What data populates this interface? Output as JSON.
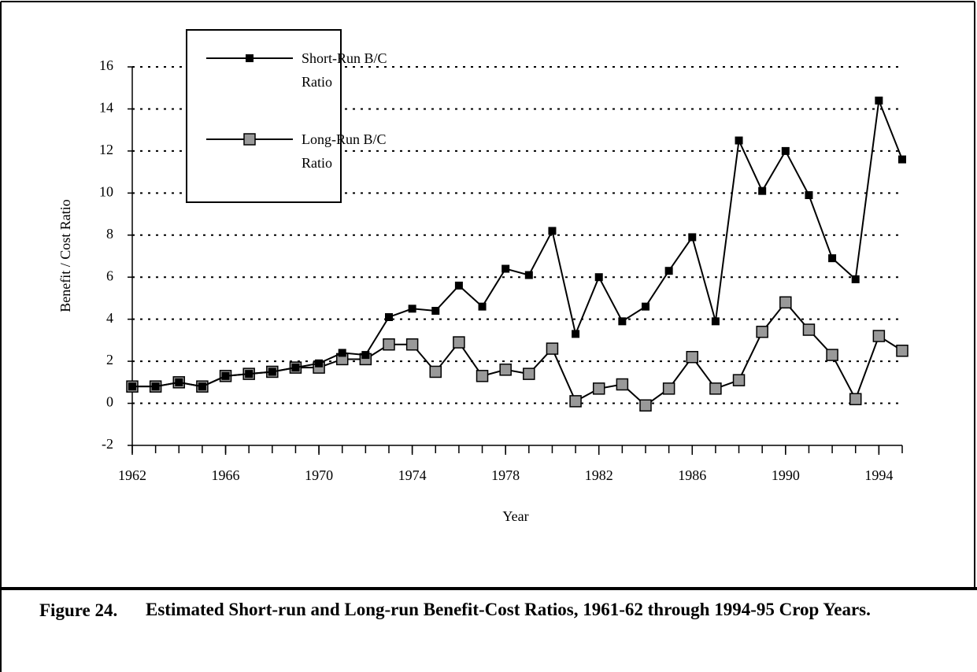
{
  "chart_data": {
    "type": "line",
    "caption_number": "Figure 24.",
    "caption": "Estimated Short-run and Long-run Benefit-Cost Ratios, 1961-62 through 1994-95 Crop Years.",
    "xlabel": "Year",
    "ylabel": "Benefit / Cost Ratio",
    "x": [
      1962,
      1963,
      1964,
      1965,
      1966,
      1967,
      1968,
      1969,
      1970,
      1971,
      1972,
      1973,
      1974,
      1975,
      1976,
      1977,
      1978,
      1979,
      1980,
      1981,
      1982,
      1983,
      1984,
      1985,
      1986,
      1987,
      1988,
      1989,
      1990,
      1991,
      1992,
      1993,
      1994,
      1995
    ],
    "series": [
      {
        "name": "Short-Run B/C Ratio",
        "color": "#000000",
        "marker": "small-square",
        "values": [
          0.8,
          0.8,
          1.0,
          0.8,
          1.3,
          1.4,
          1.5,
          1.7,
          1.9,
          2.4,
          2.3,
          4.1,
          4.5,
          4.4,
          5.6,
          4.6,
          6.4,
          6.1,
          8.2,
          3.3,
          6.0,
          3.9,
          4.6,
          6.3,
          7.9,
          3.9,
          12.5,
          10.1,
          12.0,
          9.9,
          6.9,
          5.9,
          14.4,
          11.6
        ]
      },
      {
        "name": "Long-Run B/C Ratio",
        "color": "#999999",
        "marker": "large-square",
        "values": [
          0.8,
          0.8,
          1.0,
          0.8,
          1.3,
          1.4,
          1.5,
          1.7,
          1.7,
          2.1,
          2.1,
          2.8,
          2.8,
          1.5,
          2.9,
          1.3,
          1.6,
          1.4,
          2.6,
          0.1,
          0.7,
          0.9,
          -0.1,
          0.7,
          2.2,
          0.7,
          1.1,
          3.4,
          4.8,
          3.5,
          2.3,
          0.2,
          3.2,
          2.5
        ]
      }
    ],
    "xlim": [
      1962,
      1995
    ],
    "xticks": [
      1962,
      1966,
      1970,
      1974,
      1978,
      1982,
      1986,
      1990,
      1994
    ],
    "ylim": [
      -2,
      16
    ],
    "yticks": [
      -2,
      0,
      2,
      4,
      6,
      8,
      10,
      12,
      14,
      16
    ],
    "grid": true,
    "legend": "upper-left"
  }
}
